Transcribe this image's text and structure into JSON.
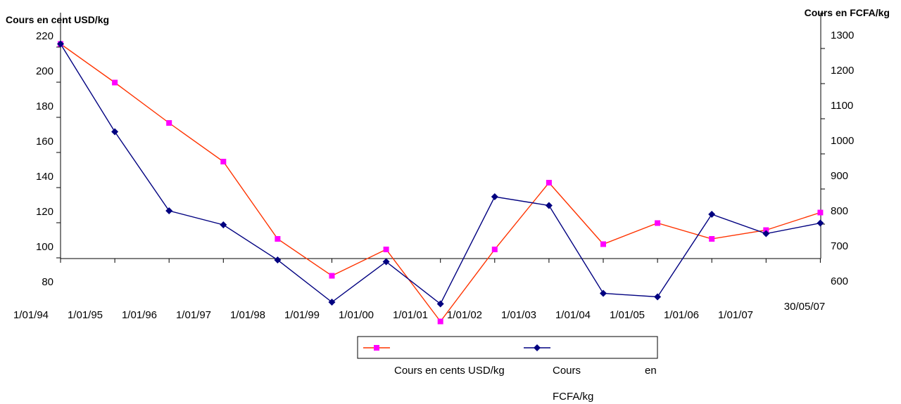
{
  "chart_data": {
    "type": "line",
    "title": "",
    "ylabel_left": "Cours en cent USD/kg",
    "ylabel_right": "Cours en FCFA/kg",
    "y_left_ticks": [
      80,
      100,
      120,
      140,
      160,
      180,
      200,
      220
    ],
    "y_right_ticks": [
      600,
      700,
      800,
      900,
      1000,
      1100,
      1200,
      1300
    ],
    "ylim_left": [
      80,
      240
    ],
    "ylim_right": [
      600,
      1400
    ],
    "categories": [
      "1/01/94",
      "1/01/95",
      "1/01/96",
      "1/01/97",
      "1/01/98",
      "1/01/99",
      "1/01/00",
      "1/01/01",
      "1/01/02",
      "1/01/03",
      "1/01/04",
      "1/01/05",
      "1/01/06",
      "1/01/07",
      "30/05/07"
    ],
    "series": [
      {
        "name": "Cours en cents USD/kg",
        "axis": "left",
        "color": "#FF00FF",
        "line_color": "#FF3300",
        "marker": "square",
        "values": [
          215,
          193,
          170,
          148,
          104,
          83,
          98,
          57,
          98,
          136,
          101,
          113,
          104,
          109,
          119
        ]
      },
      {
        "name": "Cours en FCFA/kg",
        "axis": "left",
        "color": "#000080",
        "line_color": "#000080",
        "marker": "diamond",
        "values": [
          215,
          165,
          120,
          112,
          92,
          68,
          91,
          67,
          128,
          123,
          73,
          71,
          118,
          107,
          113
        ]
      }
    ],
    "legend_labels": {
      "usd": "Cours en cents USD/kg",
      "fcfa_line1": "Cours",
      "fcfa_word2": "en",
      "fcfa_line2": "FCFA/kg"
    },
    "grid": false,
    "legend_position": "bottom"
  }
}
